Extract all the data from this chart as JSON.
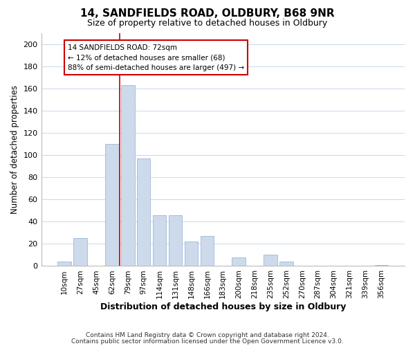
{
  "title": "14, SANDFIELDS ROAD, OLDBURY, B68 9NR",
  "subtitle": "Size of property relative to detached houses in Oldbury",
  "xlabel": "Distribution of detached houses by size in Oldbury",
  "ylabel": "Number of detached properties",
  "bar_color": "#ccdaec",
  "bar_edge_color": "#a8bedc",
  "bin_labels": [
    "10sqm",
    "27sqm",
    "45sqm",
    "62sqm",
    "79sqm",
    "97sqm",
    "114sqm",
    "131sqm",
    "148sqm",
    "166sqm",
    "183sqm",
    "200sqm",
    "218sqm",
    "235sqm",
    "252sqm",
    "270sqm",
    "287sqm",
    "304sqm",
    "321sqm",
    "339sqm",
    "356sqm"
  ],
  "bin_values": [
    4,
    25,
    0,
    110,
    163,
    97,
    46,
    46,
    22,
    27,
    0,
    8,
    0,
    10,
    4,
    0,
    0,
    0,
    0,
    0,
    1
  ],
  "vline_x": 3.5,
  "vline_color": "#cc0000",
  "ylim": [
    0,
    210
  ],
  "yticks": [
    0,
    20,
    40,
    60,
    80,
    100,
    120,
    140,
    160,
    180,
    200
  ],
  "annotation_title": "14 SANDFIELDS ROAD: 72sqm",
  "annotation_line1": "← 12% of detached houses are smaller (68)",
  "annotation_line2": "88% of semi-detached houses are larger (497) →",
  "footer1": "Contains HM Land Registry data © Crown copyright and database right 2024.",
  "footer2": "Contains public sector information licensed under the Open Government Licence v3.0.",
  "background_color": "#ffffff",
  "grid_color": "#c8d8ec"
}
